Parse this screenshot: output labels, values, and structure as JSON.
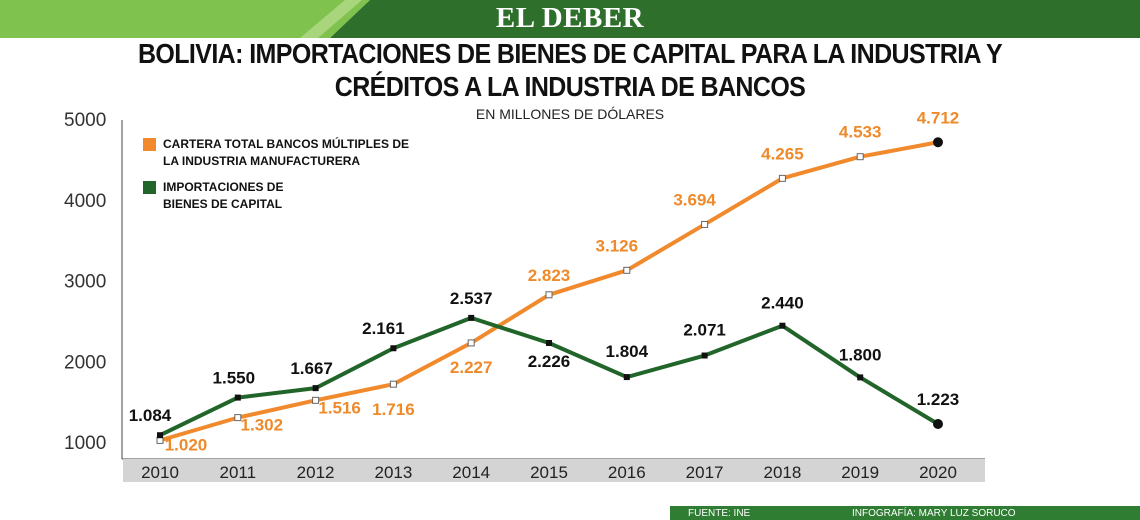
{
  "header": {
    "brand": "EL DEBER",
    "colors": {
      "green_dark": "#2e6f2b",
      "green_light": "#7fc24e"
    }
  },
  "chart_data": {
    "type": "line",
    "title_line1": "BOLIVIA: IMPORTACIONES DE BIENES DE CAPITAL PARA LA INDUSTRIA Y",
    "title_line2": "CRÉDITOS A LA INDUSTRIA DE BANCOS",
    "subtitle": "EN MILLONES DE DÓLARES",
    "x": [
      "2010",
      "2011",
      "2012",
      "2013",
      "2014",
      "2015",
      "2016",
      "2017",
      "2018",
      "2019",
      "2020"
    ],
    "y_ticks": [
      "1000",
      "2000",
      "3000",
      "4000",
      "5000"
    ],
    "ylim": [
      1000,
      5000
    ],
    "grid": false,
    "legend_position": "top-left",
    "series": [
      {
        "name": "CARTERA TOTAL BANCOS MÚLTIPLES DE LA INDUSTRIA MANUFACTURERA",
        "legend_line1": "CARTERA TOTAL BANCOS MÚLTIPLES DE",
        "legend_line2": "LA INDUSTRIA MANUFACTURERA",
        "color": "#f08a2c",
        "values": [
          1020,
          1302,
          1516,
          1716,
          2227,
          2823,
          3126,
          3694,
          4265,
          4533,
          4712
        ],
        "labels": [
          "1.020",
          "1.302",
          "1.516",
          "1.716",
          "2.227",
          "2.823",
          "3.126",
          "3.694",
          "4.265",
          "4.533",
          "4.712"
        ]
      },
      {
        "name": "IMPORTACIONES DE BIENES DE CAPITAL",
        "legend_line1": "IMPORTACIONES DE",
        "legend_line2": "BIENES DE CAPITAL",
        "color": "#22652a",
        "values": [
          1084,
          1550,
          1667,
          2161,
          2537,
          2226,
          1804,
          2071,
          2440,
          1800,
          1223
        ],
        "labels": [
          "1.084",
          "1.550",
          "1.667",
          "2.161",
          "2.537",
          "2.226",
          "1.804",
          "2.071",
          "2.440",
          "1.800",
          "1.223"
        ]
      }
    ]
  },
  "footer": {
    "source": "FUENTE: INE",
    "credit": "INFOGRAFÍA: MARY LUZ SORUCO"
  }
}
